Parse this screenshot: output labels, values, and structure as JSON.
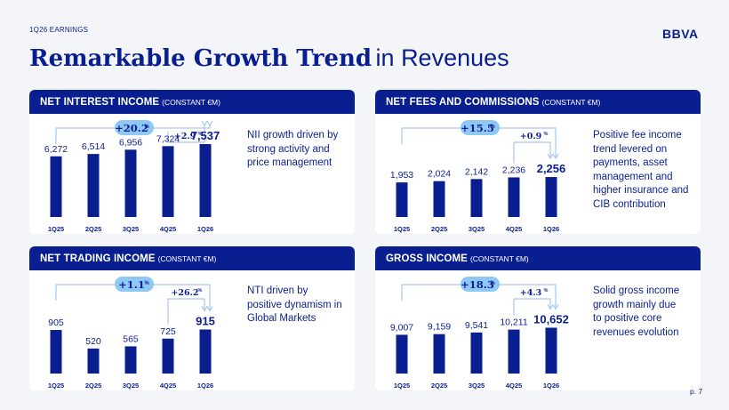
{
  "header": {
    "eyebrow": "1Q26 EARNINGS",
    "logo": "BBVA",
    "title_bold": "Remarkable Growth Trend",
    "title_light": "in Revenues",
    "page": "p. 7"
  },
  "colors": {
    "primary": "#0a1f8f",
    "pill": "#8fc8f5",
    "bracket": "#a8c7ee"
  },
  "chart_data": [
    {
      "type": "bar",
      "title": "NET INTEREST INCOME",
      "subtitle": "(CONSTANT €M)",
      "categories": [
        "1Q25",
        "2Q25",
        "3Q25",
        "4Q25",
        "1Q26"
      ],
      "values": [
        6272,
        6514,
        6956,
        7324,
        7537
      ],
      "labels": [
        "6,272",
        "6,514",
        "6,956",
        "7,324",
        "7,537"
      ],
      "ylim": [
        0,
        9650
      ],
      "growth_yoy": "+20.2",
      "growth_qoq": "+2.9",
      "unit": "%",
      "note": [
        "NII growth driven by",
        "strong activity and",
        "price management"
      ]
    },
    {
      "type": "bar",
      "title": "NET FEES AND COMMISSIONS",
      "subtitle": "(CONSTANT €M)",
      "categories": [
        "1Q25",
        "2Q25",
        "3Q25",
        "4Q25",
        "1Q26"
      ],
      "values": [
        1953,
        2024,
        2142,
        2236,
        2256
      ],
      "labels": [
        "1,953",
        "2,024",
        "2,142",
        "2,236",
        "2,256"
      ],
      "ylim": [
        0,
        5270
      ],
      "growth_yoy": "+15.5",
      "growth_qoq": "+0.9",
      "unit": "%",
      "note": [
        "Positive fee income",
        "trend levered on",
        "payments, asset",
        "management and",
        "higher insurance and",
        "CIB contribution"
      ]
    },
    {
      "type": "bar",
      "title": "NET TRADING INCOME",
      "subtitle": "(CONSTANT €M)",
      "categories": [
        "1Q25",
        "2Q25",
        "3Q25",
        "4Q25",
        "1Q26"
      ],
      "values": [
        905,
        520,
        565,
        725,
        915
      ],
      "labels": [
        "905",
        "520",
        "565",
        "725",
        "915"
      ],
      "ylim": [
        0,
        1940
      ],
      "growth_yoy": "+1.1",
      "growth_qoq": "+26.2",
      "unit": "%",
      "note": [
        "NTI driven by",
        "positive dynamism in",
        "Global Markets"
      ]
    },
    {
      "type": "bar",
      "title": "GROSS INCOME",
      "subtitle": "(CONSTANT €M)",
      "categories": [
        "1Q25",
        "2Q25",
        "3Q25",
        "4Q25",
        "1Q26"
      ],
      "values": [
        9007,
        9159,
        9541,
        10211,
        10652
      ],
      "labels": [
        "9,007",
        "9,159",
        "9,541",
        "10,211",
        "10,652"
      ],
      "ylim": [
        0,
        21700
      ],
      "growth_yoy": "+18.3",
      "growth_qoq": "+4.3",
      "unit": "%",
      "note": [
        "Solid gross income",
        "growth mainly due",
        "to positive core",
        "revenues evolution"
      ]
    }
  ]
}
